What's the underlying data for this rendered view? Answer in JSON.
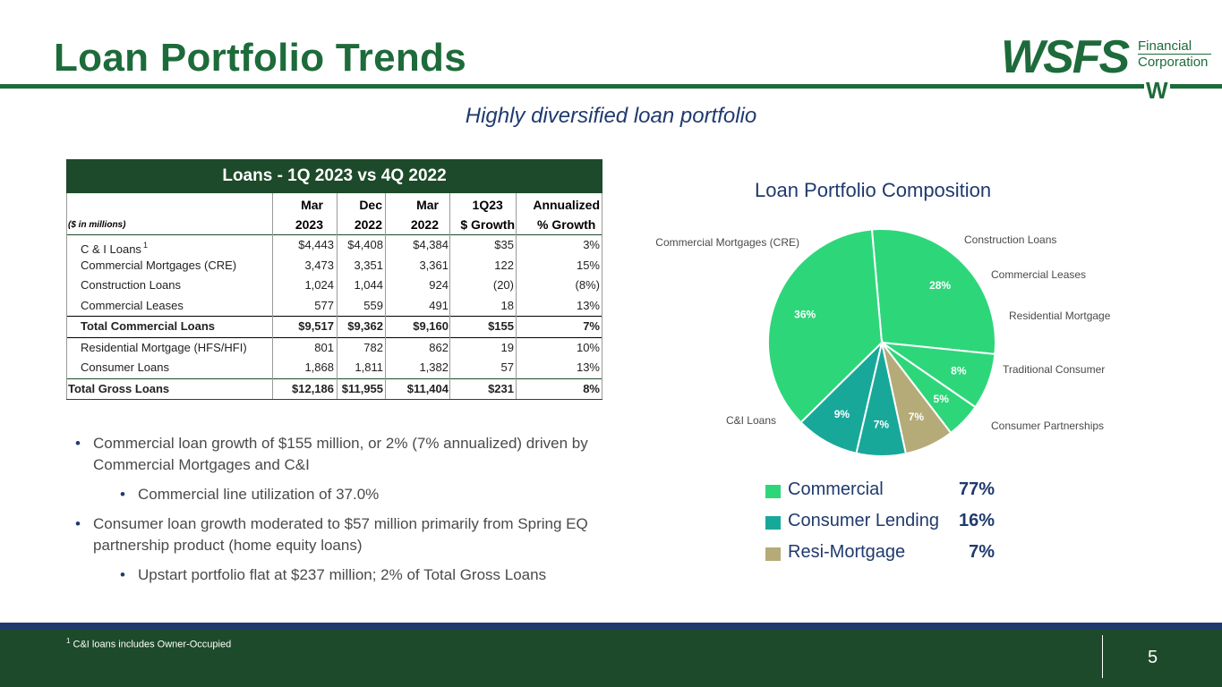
{
  "slide": {
    "title": "Loan Portfolio Trends",
    "subtitle": "Highly diversified loan portfolio",
    "page_number": "5",
    "footnote_marker": "1",
    "footnote_text": "C&I loans includes Owner-Occupied"
  },
  "logo": {
    "wordmark": "WSFS",
    "line1": "Financial",
    "line2": "Corporation",
    "monogram": "W"
  },
  "table": {
    "title": "Loans - 1Q 2023 vs 4Q 2022",
    "units": "($ in millions)",
    "columns": [
      {
        "top": "Mar",
        "bottom": "2023"
      },
      {
        "top": "Dec",
        "bottom": "2022"
      },
      {
        "top": "Mar",
        "bottom": "2022"
      },
      {
        "top": "1Q23",
        "bottom": "$ Growth"
      },
      {
        "top": "Annualized",
        "bottom": "% Growth"
      }
    ],
    "rows": [
      {
        "label": "C & I Loans",
        "sup": "1",
        "values": [
          "$4,443",
          "$4,408",
          "$4,384",
          "$35",
          "3%"
        ]
      },
      {
        "label": "Commercial Mortgages (CRE)",
        "values": [
          "3,473",
          "3,351",
          "3,361",
          "122",
          "15%"
        ]
      },
      {
        "label": "Construction Loans",
        "values": [
          "1,024",
          "1,044",
          "924",
          "(20)",
          "(8%)"
        ]
      },
      {
        "label": "Commercial Leases",
        "values": [
          "577",
          "559",
          "491",
          "18",
          "13%"
        ]
      },
      {
        "label": "Total Commercial Loans",
        "values": [
          "$9,517",
          "$9,362",
          "$9,160",
          "$155",
          "7%"
        ]
      },
      {
        "label": "Residential Mortgage (HFS/HFI)",
        "values": [
          "801",
          "782",
          "862",
          "19",
          "10%"
        ]
      },
      {
        "label": "Consumer Loans",
        "values": [
          "1,868",
          "1,811",
          "1,382",
          "57",
          "13%"
        ]
      },
      {
        "label": "Total Gross Loans",
        "values": [
          "$12,186",
          "$11,955",
          "$11,404",
          "$231",
          "8%"
        ]
      }
    ]
  },
  "bullets": [
    {
      "text": "Commercial loan growth of $155 million, or 2% (7% annualized) driven by Commercial Mortgages and C&I",
      "level": 1
    },
    {
      "text": "Commercial line utilization of 37.0%",
      "level": 2
    },
    {
      "text": "Consumer loan growth moderated to $57 million primarily from Spring EQ partnership product (home equity loans)",
      "level": 1
    },
    {
      "text": "Upstart portfolio flat at $237 million; 2% of Total Gross Loans",
      "level": 2
    }
  ],
  "legend": [
    {
      "name": "Commercial",
      "pct": "77%",
      "color": "#2ed67a"
    },
    {
      "name": "Consumer Lending",
      "pct": "16%",
      "color": "#18a89a"
    },
    {
      "name": "Resi-Mortgage",
      "pct": "7%",
      "color": "#b5ab78"
    }
  ],
  "chart_data": {
    "type": "pie",
    "title": "Loan Portfolio Composition",
    "start_angle_deg": -5,
    "slices": [
      {
        "label": "Commercial Mortgages (CRE)",
        "value": 28,
        "display": "28%",
        "color": "#2ed67a"
      },
      {
        "label": "Construction Loans",
        "value": 8,
        "display": "8%",
        "color": "#2ed67a"
      },
      {
        "label": "Commercial Leases",
        "value": 5,
        "display": "5%",
        "color": "#2ed67a"
      },
      {
        "label": "Residential Mortgage",
        "value": 7,
        "display": "7%",
        "color": "#b5ab78"
      },
      {
        "label": "Traditional Consumer",
        "value": 7,
        "display": "7%",
        "color": "#18a89a"
      },
      {
        "label": "Consumer Partnerships",
        "value": 9,
        "display": "9%",
        "color": "#18a89a"
      },
      {
        "label": "C&I Loans",
        "value": 36,
        "display": "36%",
        "color": "#2ed67a"
      }
    ]
  }
}
